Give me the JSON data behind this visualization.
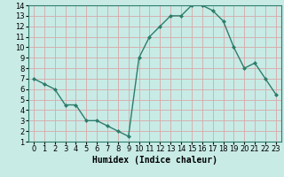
{
  "x": [
    0,
    1,
    2,
    3,
    4,
    5,
    6,
    7,
    8,
    9,
    10,
    11,
    12,
    13,
    14,
    15,
    16,
    17,
    18,
    19,
    20,
    21,
    22,
    23
  ],
  "y": [
    7,
    6.5,
    6,
    4.5,
    4.5,
    3,
    3,
    2.5,
    2,
    1.5,
    9,
    11,
    12,
    13,
    13,
    14,
    14,
    13.5,
    12.5,
    10,
    8,
    8.5,
    7,
    5.5
  ],
  "xlabel": "Humidex (Indice chaleur)",
  "ylabel": "",
  "line_color": "#2d7d6b",
  "marker": "D",
  "marker_size": 2.0,
  "bg_color": "#c8ebe6",
  "grid_color": "#d8a8a8",
  "xlim": [
    -0.5,
    23.5
  ],
  "ylim": [
    1,
    14
  ],
  "yticks": [
    1,
    2,
    3,
    4,
    5,
    6,
    7,
    8,
    9,
    10,
    11,
    12,
    13,
    14
  ],
  "xticks": [
    0,
    1,
    2,
    3,
    4,
    5,
    6,
    7,
    8,
    9,
    10,
    11,
    12,
    13,
    14,
    15,
    16,
    17,
    18,
    19,
    20,
    21,
    22,
    23
  ],
  "xlabel_fontsize": 7,
  "tick_fontsize": 6,
  "line_width": 1.0
}
